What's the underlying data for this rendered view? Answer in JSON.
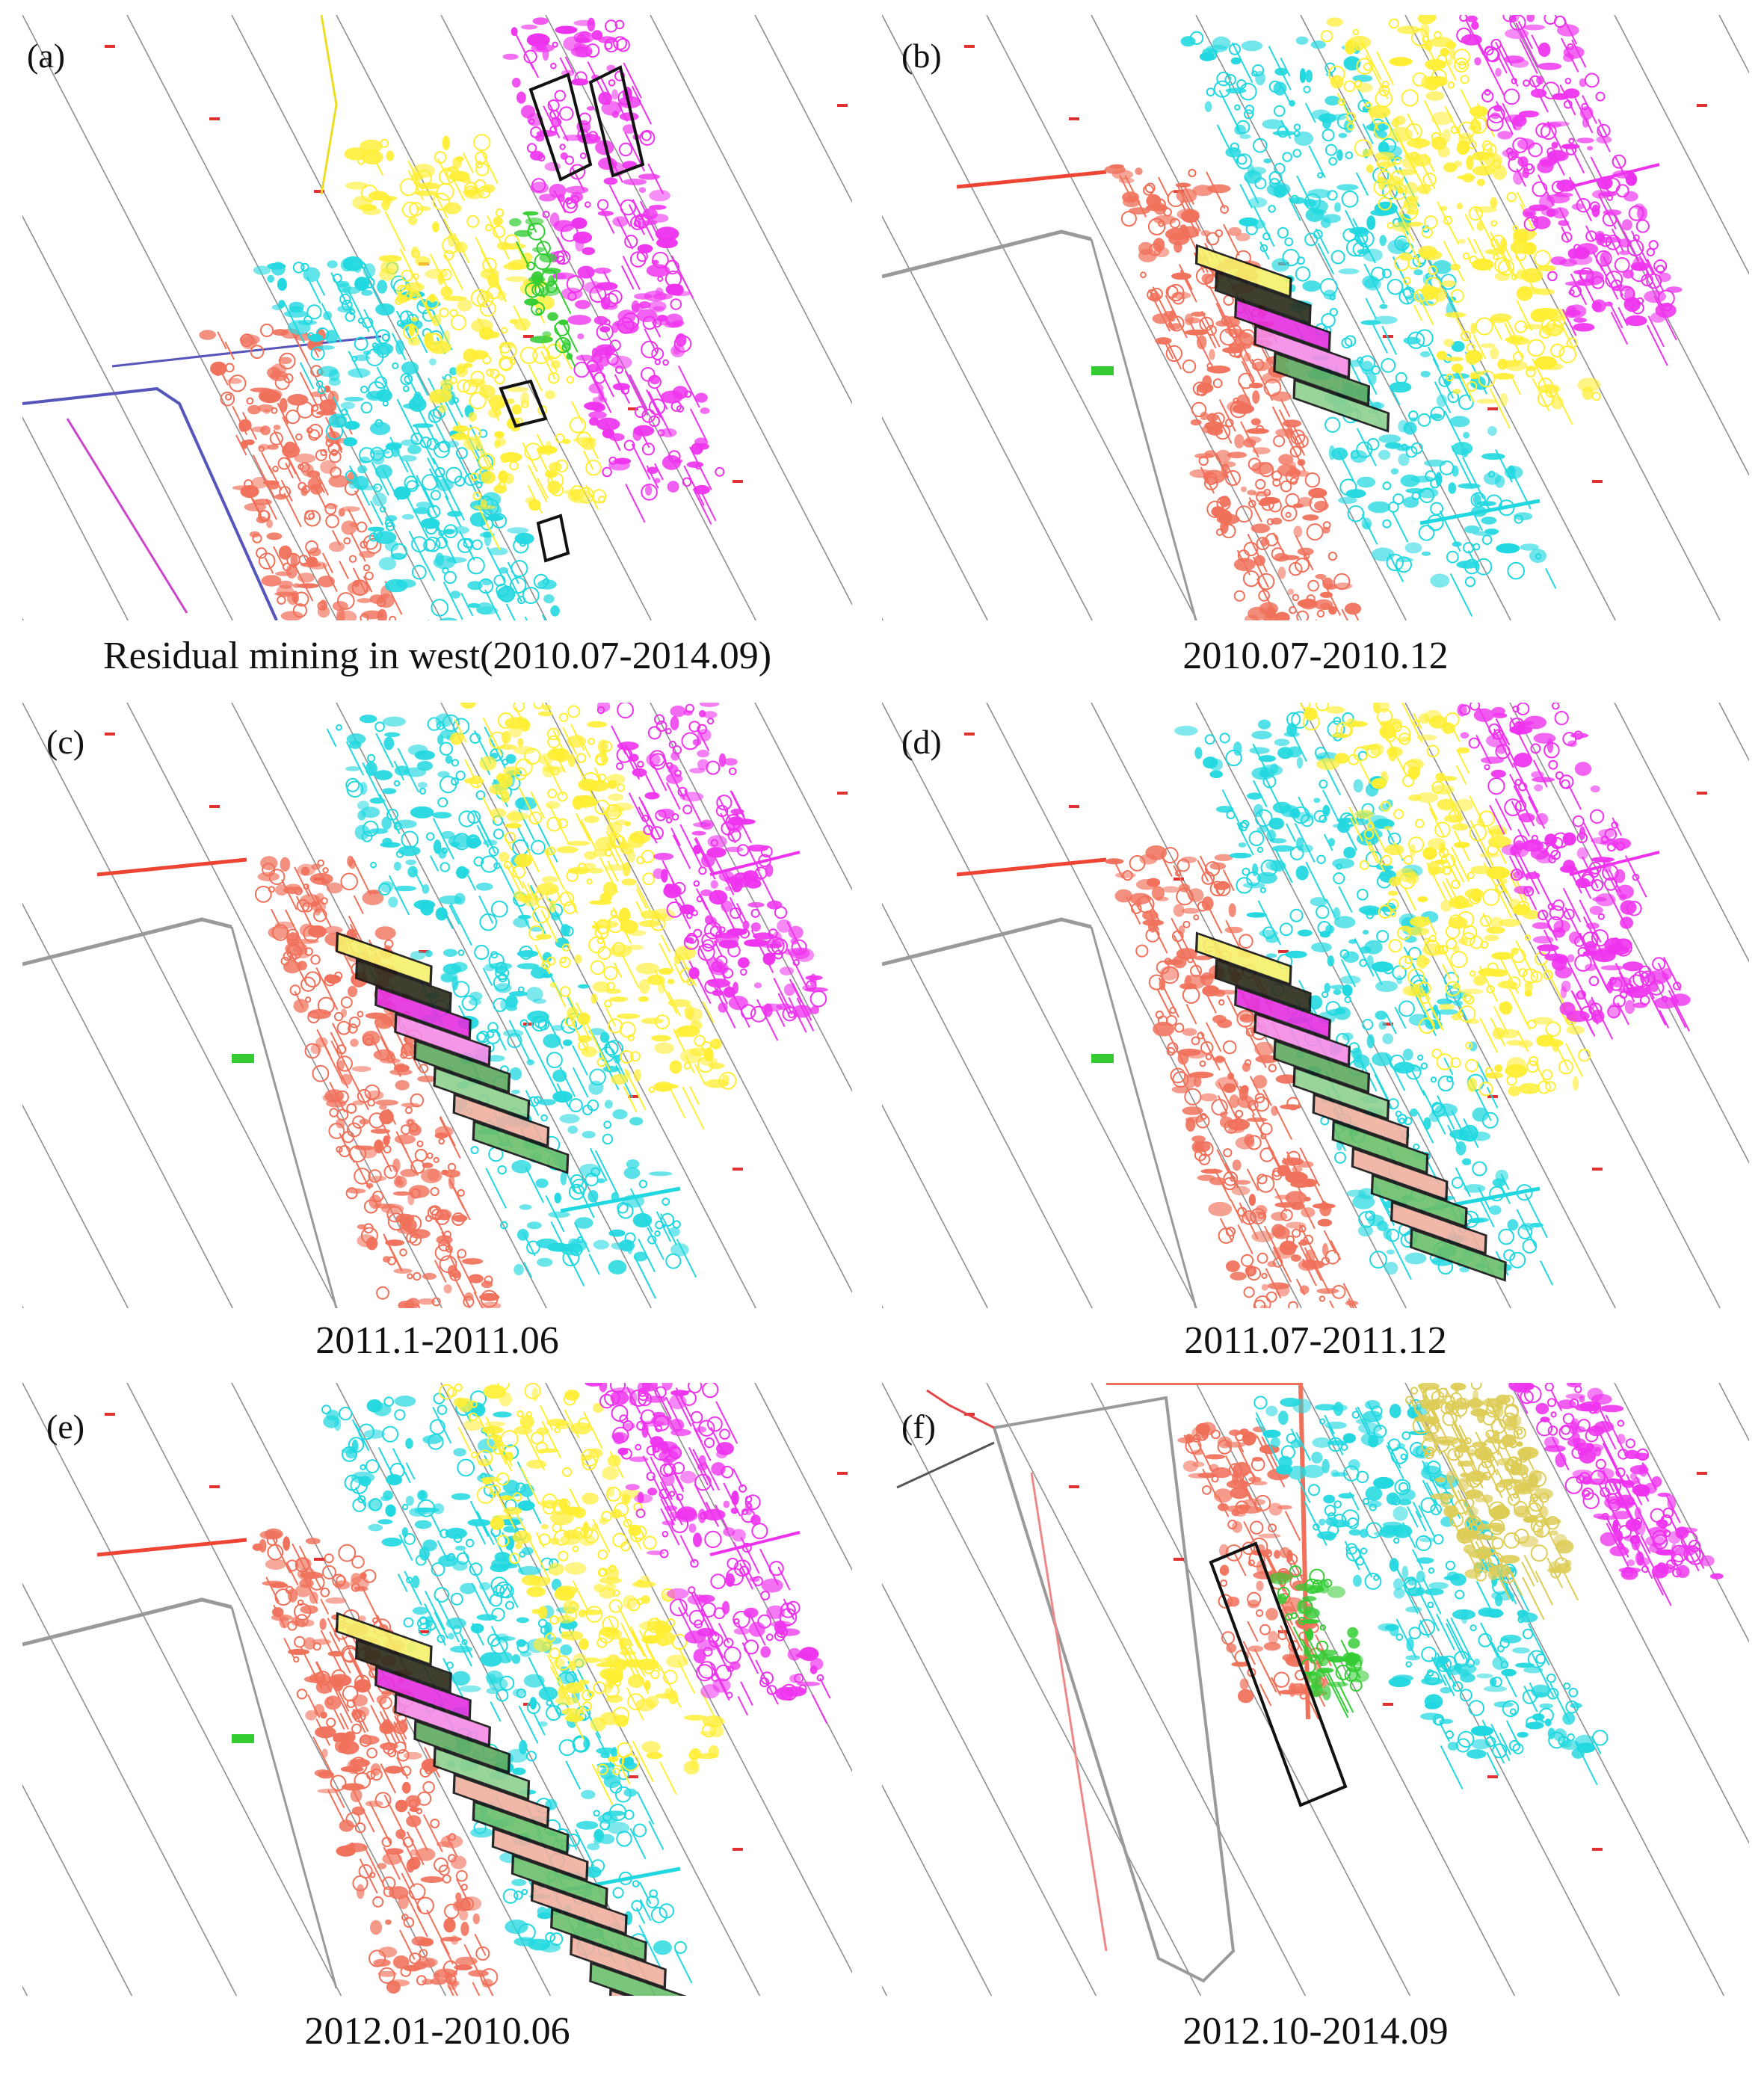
{
  "figure": {
    "panels": [
      {
        "id": "a",
        "letter": "(a)",
        "caption": "Residual mining in west(2010.07-2014.09)",
        "view": "overview"
      },
      {
        "id": "b",
        "letter": "(b)",
        "caption": "2010.07-2010.12",
        "view": "stage",
        "mined_panels": 6
      },
      {
        "id": "c",
        "letter": "(c)",
        "caption": "2011.1-2011.06",
        "view": "stage",
        "mined_panels": 8
      },
      {
        "id": "d",
        "letter": "(d)",
        "caption": "2011.07-2011.12",
        "view": "stage",
        "mined_panels": 12
      },
      {
        "id": "e",
        "letter": "(e)",
        "caption": "2012.01-2010.06",
        "view": "stage",
        "mined_panels": 16
      },
      {
        "id": "f",
        "letter": "(f)",
        "caption": "2012.10-2014.09",
        "view": "final"
      }
    ],
    "seam_colors": {
      "red": "#f0705a",
      "cyan": "#22d8e0",
      "yellow": "#ffee33",
      "magenta": "#ee33ee",
      "green": "#33cc33",
      "gray": "#9a9a9a",
      "outline": "#111111"
    }
  }
}
